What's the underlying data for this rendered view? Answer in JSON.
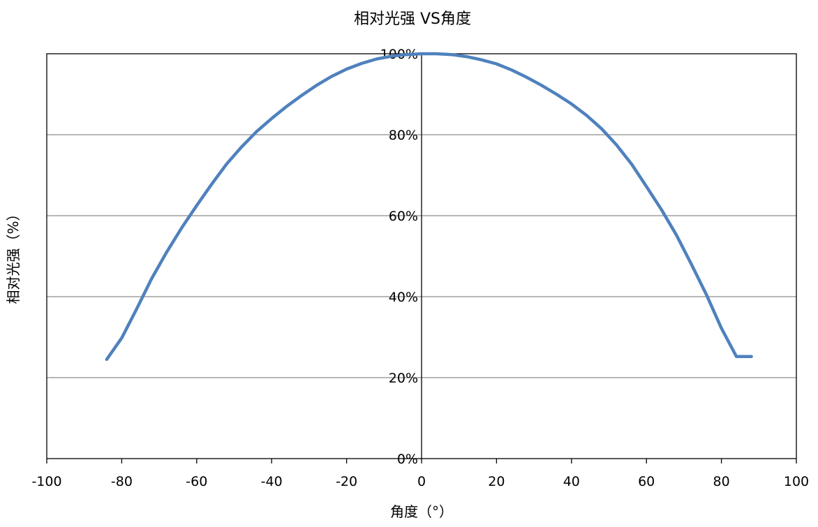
{
  "chart_data": {
    "type": "line",
    "title": "相对光强 VS角度",
    "xlabel": "角度（°）",
    "ylabel": "相对光强（%）",
    "xlim": [
      -100,
      100
    ],
    "ylim": [
      0,
      100
    ],
    "x_ticks": [
      -100,
      -80,
      -60,
      -40,
      -20,
      0,
      20,
      40,
      60,
      80,
      100
    ],
    "x_tick_labels": [
      "-100",
      "-80",
      "-60",
      "-40",
      "-20",
      "0",
      "20",
      "40",
      "60",
      "80",
      "100"
    ],
    "y_ticks": [
      0,
      20,
      40,
      60,
      80,
      100
    ],
    "y_tick_labels": [
      "0%",
      "20%",
      "40%",
      "60%",
      "80%",
      "100%"
    ],
    "grid": {
      "horizontal": true,
      "vertical": false
    },
    "legend": "none",
    "series": [
      {
        "color": "#4F81BD",
        "x": [
          -84,
          -80,
          -76,
          -72,
          -68,
          -64,
          -60,
          -56,
          -52,
          -48,
          -44,
          -40,
          -36,
          -32,
          -28,
          -24,
          -20,
          -16,
          -12,
          -8,
          -4,
          0,
          4,
          8,
          12,
          16,
          20,
          24,
          28,
          32,
          36,
          40,
          44,
          48,
          52,
          56,
          60,
          64,
          68,
          72,
          76,
          80,
          84,
          88
        ],
        "values": [
          24.5,
          29.8,
          37,
          44.5,
          51,
          57,
          62.5,
          67.8,
          72.8,
          77,
          80.8,
          84,
          87,
          89.7,
          92.2,
          94.4,
          96.2,
          97.6,
          98.7,
          99.4,
          99.8,
          100,
          100,
          99.8,
          99.3,
          98.5,
          97.5,
          96,
          94.2,
          92.2,
          90,
          87.6,
          84.8,
          81.5,
          77.5,
          72.8,
          67.2,
          61.5,
          55.2,
          48,
          40.5,
          32.2,
          25.2,
          25.2
        ]
      }
    ]
  }
}
